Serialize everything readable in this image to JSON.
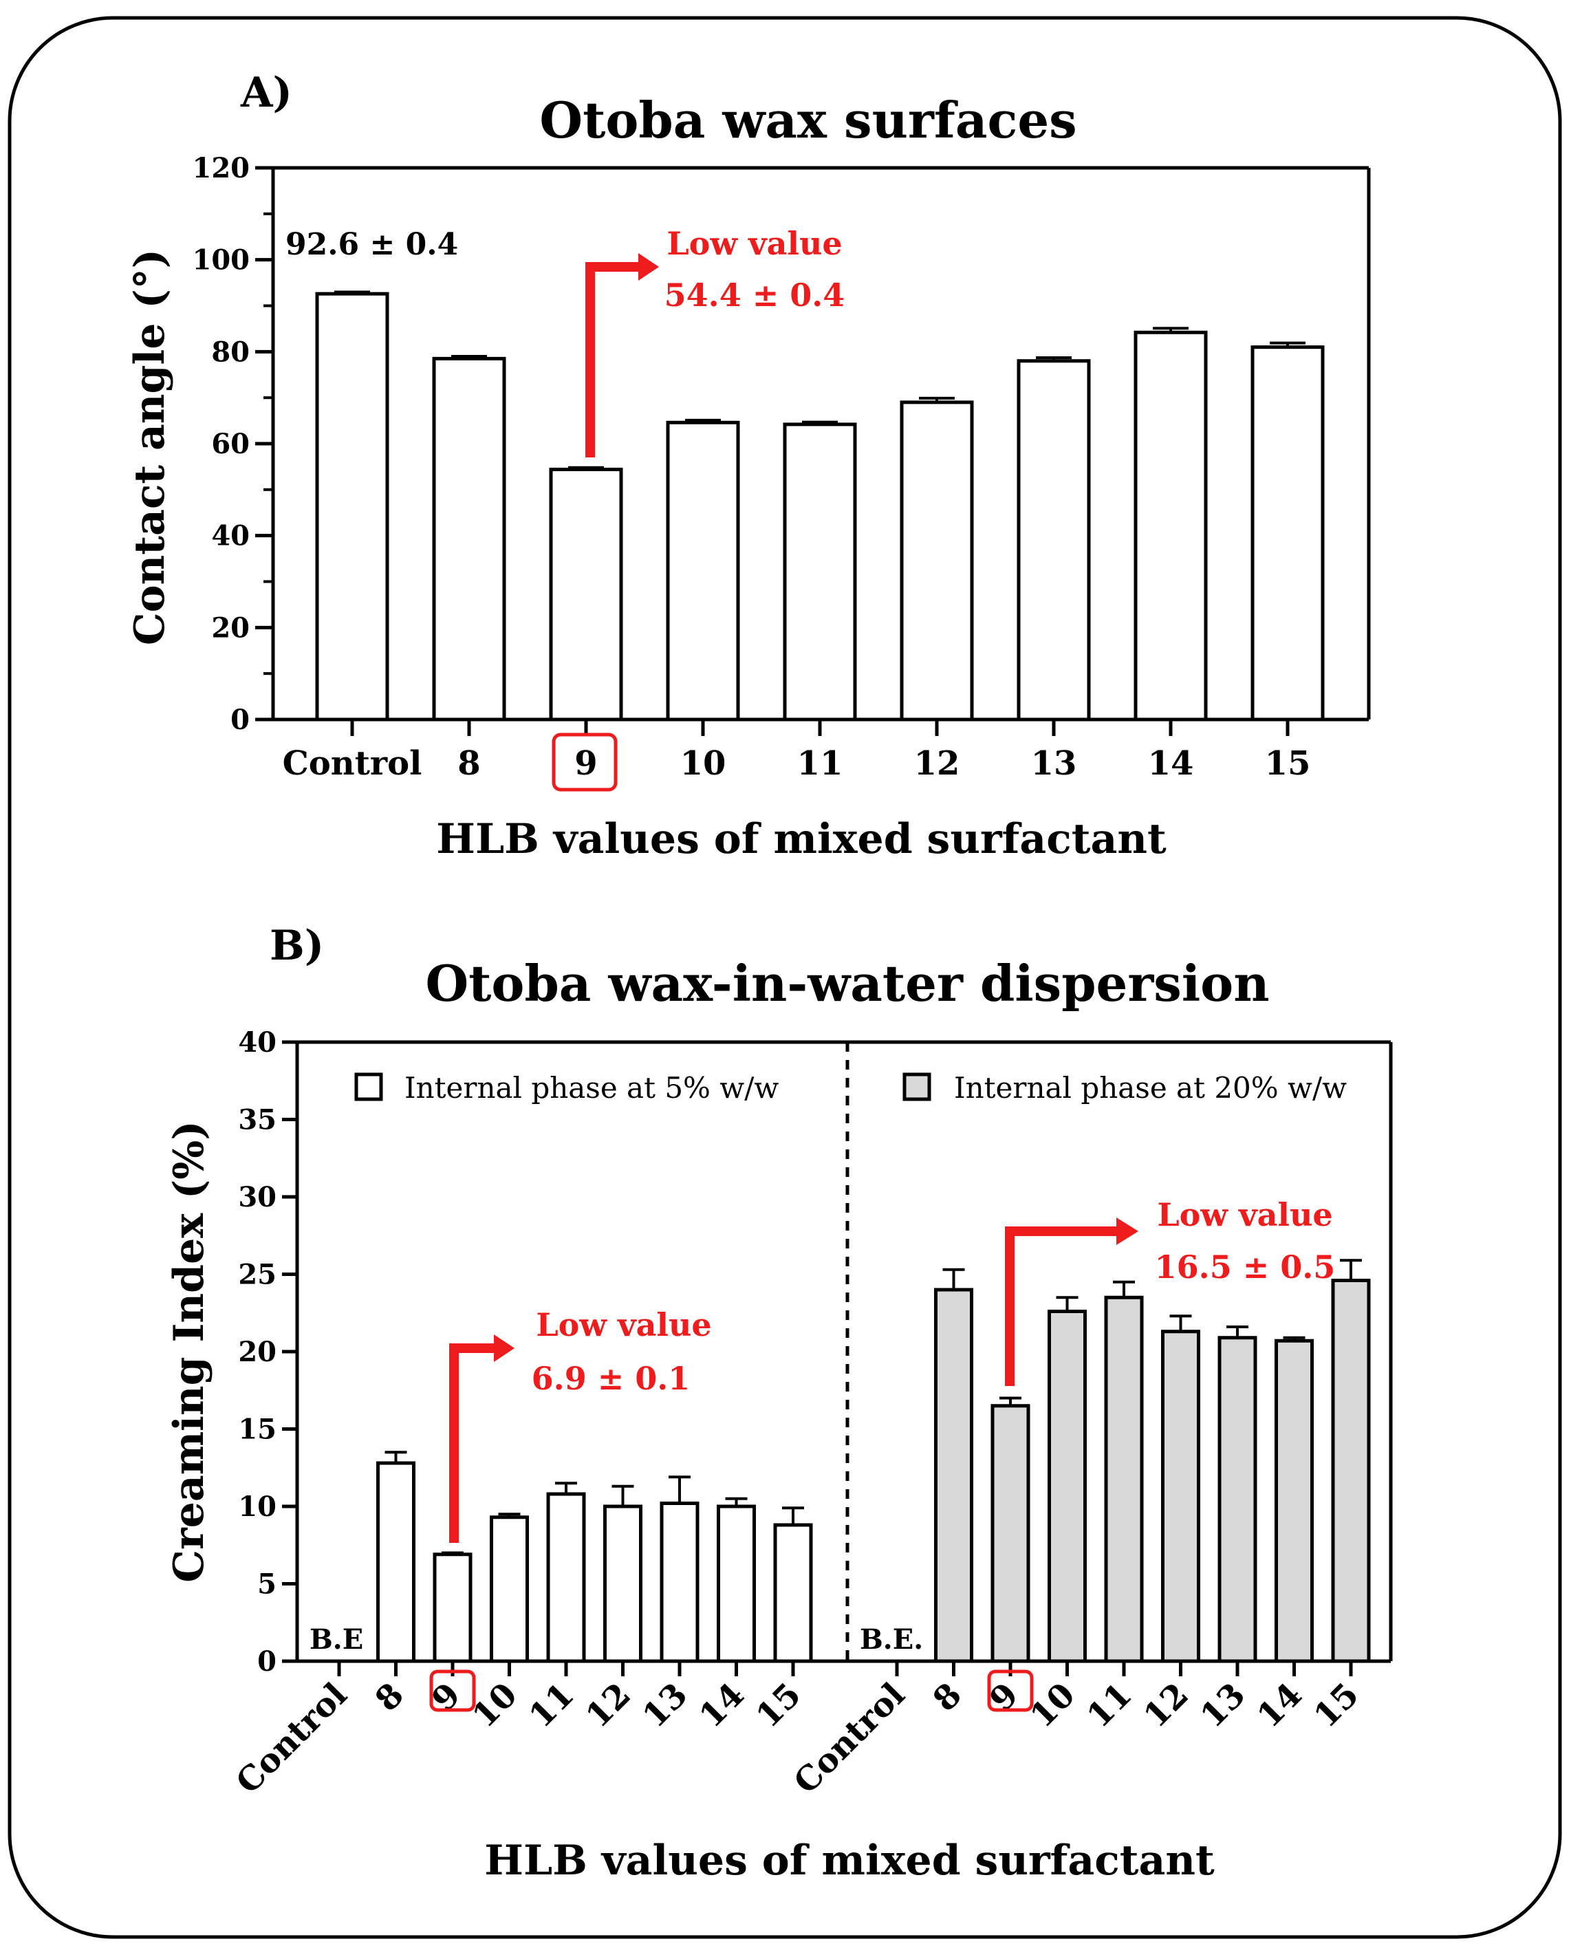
{
  "colors": {
    "bar_fill_5": "#ffffff",
    "bar_fill_20": "#d9d9d9",
    "stroke": "#000000",
    "highlight_red": "#ee1c1c"
  },
  "chart_data": [
    {
      "panel": "A)",
      "type": "bar",
      "title": "Otoba wax surfaces",
      "xlabel": "HLB values of mixed surfactant",
      "ylabel": "Contact angle (°)",
      "ylim": [
        0,
        120
      ],
      "yticks": [
        "0",
        "20",
        "40",
        "60",
        "80",
        "100",
        "120"
      ],
      "categories": [
        "Control",
        "8",
        "9",
        "10",
        "11",
        "12",
        "13",
        "14",
        "15"
      ],
      "values": [
        92.6,
        78.5,
        54.4,
        64.6,
        64.2,
        69.0,
        78.0,
        84.2,
        81.0
      ],
      "errors": [
        0.4,
        0.5,
        0.4,
        0.5,
        0.5,
        0.9,
        0.7,
        0.9,
        0.9
      ],
      "highlight_category": "9",
      "annotations": {
        "control_value": "92.6 ± 0.4",
        "low_label": "Low value",
        "low_value": "54.4 ± 0.4"
      }
    },
    {
      "panel": "B)",
      "type": "bar",
      "title": "Otoba wax-in-water dispersion",
      "xlabel": "HLB values of mixed surfactant",
      "ylabel": "Creaming Index (%)",
      "ylim": [
        0,
        40
      ],
      "yticks": [
        "0",
        "5",
        "10",
        "15",
        "20",
        "25",
        "30",
        "35",
        "40"
      ],
      "categories": [
        "Control",
        "8",
        "9",
        "10",
        "11",
        "12",
        "13",
        "14",
        "15"
      ],
      "highlight_category": "9",
      "series": [
        {
          "name": "Internal phase at 5% w/w",
          "values": [
            0,
            12.8,
            6.9,
            9.3,
            10.8,
            10.0,
            10.2,
            10.0,
            8.8
          ],
          "errors": [
            0,
            0.7,
            0.1,
            0.2,
            0.7,
            1.3,
            1.7,
            0.5,
            1.1
          ],
          "empty_label": "B.E",
          "annotations": {
            "low_label": "Low value",
            "low_value": "6.9 ± 0.1"
          }
        },
        {
          "name": "Internal phase at 20% w/w",
          "values": [
            0,
            24.0,
            16.5,
            22.6,
            23.5,
            21.3,
            20.9,
            20.7,
            24.6
          ],
          "errors": [
            0,
            1.3,
            0.5,
            0.9,
            1.0,
            1.0,
            0.7,
            0.2,
            1.3
          ],
          "empty_label": "B.E.",
          "annotations": {
            "low_label": "Low value",
            "low_value": "16.5 ± 0.5"
          }
        }
      ]
    }
  ]
}
